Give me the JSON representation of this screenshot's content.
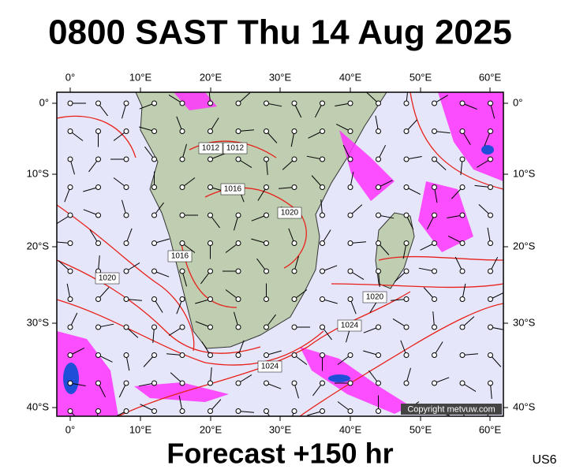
{
  "header": {
    "title": "0800 SAST Thu 14 Aug 2025"
  },
  "map": {
    "top_axis_labels": [
      "0°",
      "10°E",
      "20°E",
      "30°E",
      "40°E",
      "50°E",
      "60°E"
    ],
    "bottom_axis_labels": [
      "0°",
      "10°E",
      "20°E",
      "30°E",
      "40°E",
      "50°E",
      "60°E"
    ],
    "left_axis_labels": [
      "0°",
      "10°S",
      "20°S",
      "30°S",
      "40°S"
    ],
    "right_axis_labels": [
      "0°",
      "10°S",
      "20°S",
      "30°S",
      "40°S"
    ],
    "isobar_labels": [
      "1012",
      "1012",
      "1016",
      "1020",
      "1016",
      "1020",
      "1024",
      "1024",
      "1020"
    ],
    "copyright": "Copyright metvuw.com"
  },
  "footer": {
    "forecast": "Forecast +150 hr",
    "code": "US6"
  }
}
